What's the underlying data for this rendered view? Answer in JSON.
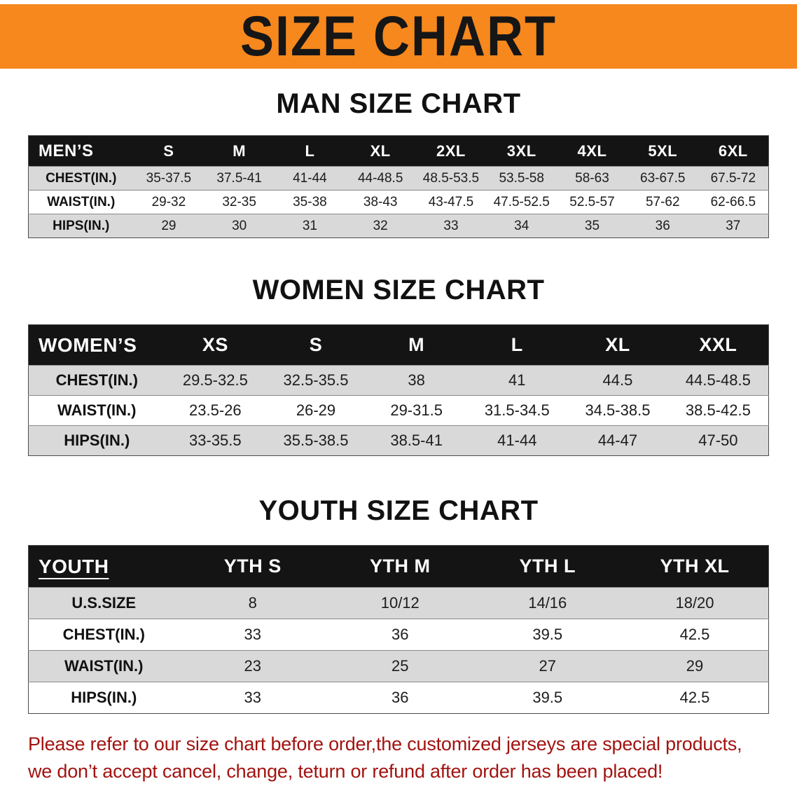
{
  "banner": {
    "title": "SIZE CHART",
    "bg_color": "#F6881D",
    "text_color": "#161616"
  },
  "sections": [
    {
      "id": "men",
      "heading": "MAN SIZE CHART",
      "table": {
        "header": [
          "MEN’S",
          "S",
          "M",
          "L",
          "XL",
          "2XL",
          "3XL",
          "4XL",
          "5XL",
          "6XL"
        ],
        "rows": [
          {
            "label": "CHEST(IN.)",
            "values": [
              "35-37.5",
              "37.5-41",
              "41-44",
              "44-48.5",
              "48.5-53.5",
              "53.5-58",
              "58-63",
              "63-67.5",
              "67.5-72"
            ]
          },
          {
            "label": "WAIST(IN.)",
            "values": [
              "29-32",
              "32-35",
              "35-38",
              "38-43",
              "43-47.5",
              "47.5-52.5",
              "52.5-57",
              "57-62",
              "62-66.5"
            ]
          },
          {
            "label": "HIPS(IN.)",
            "values": [
              "29",
              "30",
              "31",
              "32",
              "33",
              "34",
              "35",
              "36",
              "37"
            ]
          }
        ]
      }
    },
    {
      "id": "women",
      "heading": "WOMEN SIZE CHART",
      "table": {
        "header": [
          "WOMEN’S",
          "XS",
          "S",
          "M",
          "L",
          "XL",
          "XXL"
        ],
        "rows": [
          {
            "label": "CHEST(IN.)",
            "values": [
              "29.5-32.5",
              "32.5-35.5",
              "38",
              "41",
              "44.5",
              "44.5-48.5"
            ]
          },
          {
            "label": "WAIST(IN.)",
            "values": [
              "23.5-26",
              "26-29",
              "29-31.5",
              "31.5-34.5",
              "34.5-38.5",
              "38.5-42.5"
            ]
          },
          {
            "label": "HIPS(IN.)",
            "values": [
              "33-35.5",
              "35.5-38.5",
              "38.5-41",
              "41-44",
              "44-47",
              "47-50"
            ]
          }
        ]
      }
    },
    {
      "id": "youth",
      "heading": "YOUTH SIZE CHART",
      "table": {
        "header": [
          "YOUTH",
          "YTH S",
          "YTH M",
          "YTH L",
          "YTH XL"
        ],
        "rows": [
          {
            "label": "U.S.SIZE",
            "values": [
              "8",
              "10/12",
              "14/16",
              "18/20"
            ]
          },
          {
            "label": "CHEST(IN.)",
            "values": [
              "33",
              "36",
              "39.5",
              "42.5"
            ]
          },
          {
            "label": "WAIST(IN.)",
            "values": [
              "23",
              "25",
              "27",
              "29"
            ]
          },
          {
            "label": "HIPS(IN.)",
            "values": [
              "33",
              "36",
              "39.5",
              "42.5"
            ]
          }
        ]
      }
    }
  ],
  "footer": {
    "text_color": "#A21310",
    "lines": [
      "Please refer to our size chart before order,the customized jerseys are special products,",
      "we don’t accept cancel, change, teturn or refund after order has been placed!"
    ]
  }
}
